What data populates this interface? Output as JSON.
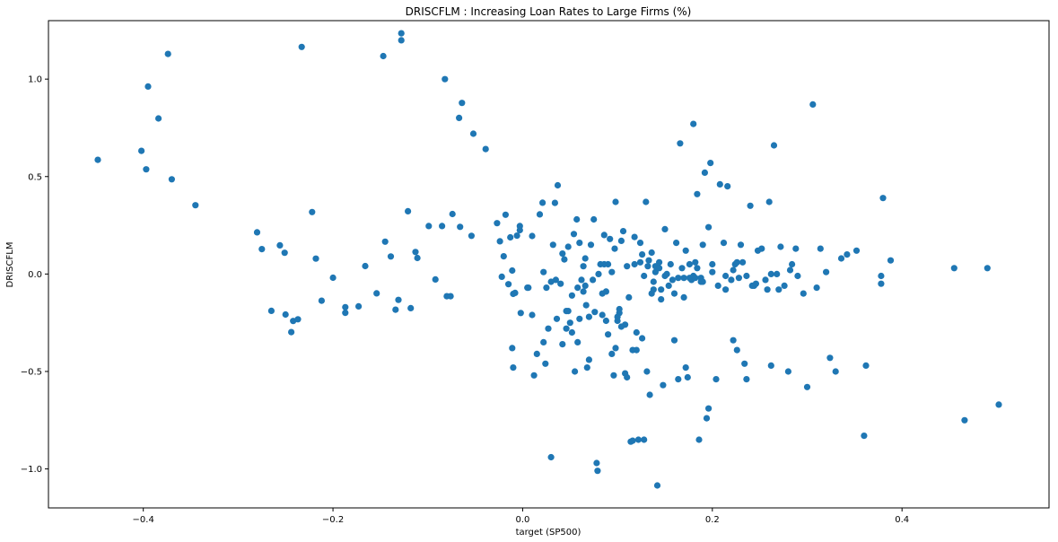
{
  "chart_data": {
    "type": "scatter",
    "title": "DRISCFLM :  Increasing Loan Rates to Large Firms (%)",
    "xlabel": "target (SP500)",
    "ylabel": "DRISCFLM",
    "xlim": [
      -0.5,
      0.555
    ],
    "ylim": [
      -1.2,
      1.3
    ],
    "xticks": [
      -0.4,
      -0.2,
      0.0,
      0.2,
      0.4
    ],
    "xtick_labels": [
      "−0.4",
      "−0.2",
      "0.0",
      "0.2",
      "0.4"
    ],
    "yticks": [
      -1.0,
      -0.5,
      0.0,
      0.5,
      1.0
    ],
    "ytick_labels": [
      "−1.0",
      "−0.5",
      "0.0",
      "0.5",
      "1.0"
    ],
    "grid": false,
    "marker_color": "#1f77b4",
    "points": [
      [
        -0.448,
        0.586
      ],
      [
        -0.402,
        0.632
      ],
      [
        -0.397,
        0.537
      ],
      [
        -0.395,
        0.962
      ],
      [
        -0.384,
        0.798
      ],
      [
        -0.374,
        1.129
      ],
      [
        -0.37,
        0.486
      ],
      [
        -0.345,
        0.353
      ],
      [
        -0.233,
        1.165
      ],
      [
        -0.147,
        1.118
      ],
      [
        -0.128,
        1.235
      ],
      [
        -0.128,
        1.199
      ],
      [
        -0.082,
        1.0
      ],
      [
        -0.067,
        0.801
      ],
      [
        -0.064,
        0.878
      ],
      [
        -0.052,
        0.72
      ],
      [
        -0.039,
        0.641
      ],
      [
        -0.28,
        0.214
      ],
      [
        -0.275,
        0.128
      ],
      [
        -0.256,
        0.147
      ],
      [
        -0.251,
        0.109
      ],
      [
        -0.222,
        0.318
      ],
      [
        -0.218,
        0.079
      ],
      [
        -0.212,
        -0.137
      ],
      [
        -0.2,
        -0.019
      ],
      [
        -0.187,
        -0.17
      ],
      [
        -0.187,
        -0.199
      ],
      [
        -0.173,
        -0.166
      ],
      [
        -0.166,
        0.041
      ],
      [
        -0.154,
        -0.099
      ],
      [
        -0.145,
        0.166
      ],
      [
        -0.139,
        0.09
      ],
      [
        -0.134,
        -0.183
      ],
      [
        -0.131,
        -0.133
      ],
      [
        -0.121,
        0.322
      ],
      [
        -0.118,
        -0.175
      ],
      [
        -0.113,
        0.113
      ],
      [
        -0.111,
        0.082
      ],
      [
        -0.099,
        0.246
      ],
      [
        -0.092,
        -0.028
      ],
      [
        -0.085,
        0.246
      ],
      [
        -0.08,
        -0.114
      ],
      [
        -0.076,
        -0.114
      ],
      [
        -0.074,
        0.308
      ],
      [
        -0.066,
        0.242
      ],
      [
        -0.054,
        0.196
      ],
      [
        -0.265,
        -0.189
      ],
      [
        -0.25,
        -0.208
      ],
      [
        -0.244,
        -0.298
      ],
      [
        -0.242,
        -0.241
      ],
      [
        -0.237,
        -0.232
      ],
      [
        -0.027,
        0.261
      ],
      [
        -0.024,
        0.168
      ],
      [
        -0.022,
        -0.014
      ],
      [
        -0.02,
        0.091
      ],
      [
        -0.018,
        0.304
      ],
      [
        -0.015,
        -0.052
      ],
      [
        -0.013,
        0.188
      ],
      [
        -0.011,
        0.018
      ],
      [
        -0.01,
        -0.102
      ],
      [
        -0.008,
        -0.097
      ],
      [
        -0.006,
        0.197
      ],
      [
        -0.003,
        0.225
      ],
      [
        -0.003,
        0.246
      ],
      [
        -0.002,
        -0.2
      ],
      [
        0.005,
        -0.07
      ],
      [
        0.01,
        0.195
      ],
      [
        0.015,
        -0.41
      ],
      [
        0.018,
        0.306
      ],
      [
        0.021,
        0.366
      ],
      [
        0.022,
        0.01
      ],
      [
        0.025,
        -0.07
      ],
      [
        0.027,
        -0.28
      ],
      [
        0.03,
        -0.94
      ],
      [
        0.032,
        0.15
      ],
      [
        0.034,
        0.365
      ],
      [
        0.035,
        -0.03
      ],
      [
        0.037,
        0.455
      ],
      [
        0.04,
        -0.05
      ],
      [
        0.042,
        0.105
      ],
      [
        0.044,
        0.075
      ],
      [
        0.046,
        -0.19
      ],
      [
        0.048,
        0.14
      ],
      [
        0.05,
        -0.25
      ],
      [
        0.052,
        -0.3
      ],
      [
        0.054,
        0.205
      ],
      [
        0.055,
        -0.5
      ],
      [
        0.057,
        0.28
      ],
      [
        0.058,
        -0.07
      ],
      [
        0.06,
        0.16
      ],
      [
        0.062,
        -0.03
      ],
      [
        0.064,
        0.04
      ],
      [
        0.066,
        0.08
      ],
      [
        0.067,
        -0.16
      ],
      [
        0.068,
        -0.48
      ],
      [
        0.07,
        -0.22
      ],
      [
        0.072,
        0.15
      ],
      [
        0.074,
        -0.03
      ],
      [
        0.075,
        0.28
      ],
      [
        0.076,
        -0.195
      ],
      [
        0.078,
        -0.97
      ],
      [
        0.079,
        -1.01
      ],
      [
        0.082,
        0.05
      ],
      [
        0.084,
        -0.1
      ],
      [
        0.086,
        0.2
      ],
      [
        0.088,
        -0.24
      ],
      [
        0.09,
        0.05
      ],
      [
        0.092,
        0.18
      ],
      [
        0.094,
        -0.41
      ],
      [
        0.096,
        -0.52
      ],
      [
        0.097,
        0.13
      ],
      [
        0.098,
        0.37
      ],
      [
        0.1,
        -0.22
      ],
      [
        0.102,
        -0.18
      ],
      [
        0.104,
        0.17
      ],
      [
        0.106,
        0.22
      ],
      [
        0.108,
        -0.26
      ],
      [
        0.11,
        -0.53
      ],
      [
        0.112,
        -0.12
      ],
      [
        0.114,
        -0.86
      ],
      [
        0.116,
        -0.855
      ],
      [
        0.118,
        0.05
      ],
      [
        0.12,
        -0.3
      ],
      [
        0.122,
        -0.85
      ],
      [
        0.124,
        0.06
      ],
      [
        0.126,
        0.1
      ],
      [
        0.128,
        -0.85
      ],
      [
        0.13,
        0.37
      ],
      [
        0.131,
        -0.5
      ],
      [
        0.133,
        0.07
      ],
      [
        0.134,
        -0.62
      ],
      [
        0.136,
        0.11
      ],
      [
        0.138,
        -0.04
      ],
      [
        0.14,
        0.01
      ],
      [
        0.142,
        -1.085
      ],
      [
        0.144,
        0.06
      ],
      [
        0.146,
        -0.08
      ],
      [
        0.148,
        -0.57
      ],
      [
        0.15,
        0.23
      ],
      [
        0.154,
        -0.06
      ],
      [
        0.158,
        -0.03
      ],
      [
        0.16,
        -0.34
      ],
      [
        0.162,
        0.16
      ],
      [
        0.164,
        -0.54
      ],
      [
        0.166,
        0.67
      ],
      [
        0.168,
        0.03
      ],
      [
        0.17,
        -0.02
      ],
      [
        0.172,
        -0.48
      ],
      [
        0.174,
        -0.53
      ],
      [
        0.176,
        0.05
      ],
      [
        0.178,
        -0.03
      ],
      [
        0.18,
        0.77
      ],
      [
        0.182,
        0.06
      ],
      [
        0.184,
        0.41
      ],
      [
        0.186,
        -0.85
      ],
      [
        0.188,
        -0.02
      ],
      [
        0.19,
        -0.04
      ],
      [
        0.192,
        0.52
      ],
      [
        0.194,
        -0.74
      ],
      [
        0.196,
        -0.69
      ],
      [
        0.198,
        0.57
      ],
      [
        0.2,
        0.01
      ],
      [
        0.204,
        -0.54
      ],
      [
        0.208,
        0.46
      ],
      [
        0.212,
        0.16
      ],
      [
        0.216,
        0.45
      ],
      [
        0.22,
        -0.03
      ],
      [
        0.222,
        -0.34
      ],
      [
        0.224,
        0.05
      ],
      [
        0.226,
        -0.39
      ],
      [
        0.23,
        0.15
      ],
      [
        0.234,
        -0.46
      ],
      [
        0.236,
        -0.01
      ],
      [
        0.24,
        0.35
      ],
      [
        0.244,
        -0.06
      ],
      [
        0.248,
        0.12
      ],
      [
        0.252,
        0.13
      ],
      [
        0.258,
        -0.08
      ],
      [
        0.26,
        0.37
      ],
      [
        0.262,
        -0.47
      ],
      [
        0.265,
        0.66
      ],
      [
        0.268,
        0.0
      ],
      [
        0.272,
        0.14
      ],
      [
        0.276,
        -0.06
      ],
      [
        0.28,
        -0.5
      ],
      [
        0.284,
        0.05
      ],
      [
        0.288,
        0.13
      ],
      [
        0.296,
        -0.1
      ],
      [
        0.3,
        -0.58
      ],
      [
        0.306,
        0.87
      ],
      [
        0.31,
        -0.07
      ],
      [
        0.314,
        0.13
      ],
      [
        0.32,
        0.01
      ],
      [
        0.324,
        -0.43
      ],
      [
        0.33,
        -0.5
      ],
      [
        0.336,
        0.08
      ],
      [
        0.342,
        0.1
      ],
      [
        0.352,
        0.12
      ],
      [
        0.36,
        -0.83
      ],
      [
        0.362,
        -0.47
      ],
      [
        0.378,
        -0.05
      ],
      [
        0.378,
        -0.01
      ],
      [
        0.38,
        0.39
      ],
      [
        0.388,
        0.07
      ],
      [
        0.455,
        0.03
      ],
      [
        0.466,
        -0.75
      ],
      [
        0.49,
        0.03
      ],
      [
        0.502,
        -0.67
      ],
      [
        0.03,
        -0.04
      ],
      [
        0.042,
        -0.36
      ],
      [
        0.046,
        -0.28
      ],
      [
        0.036,
        -0.23
      ],
      [
        0.058,
        -0.35
      ],
      [
        0.066,
        -0.06
      ],
      [
        0.07,
        -0.44
      ],
      [
        0.08,
        0.0
      ],
      [
        0.086,
        0.05
      ],
      [
        0.09,
        -0.31
      ],
      [
        0.094,
        0.01
      ],
      [
        0.1,
        -0.24
      ],
      [
        0.104,
        -0.27
      ],
      [
        0.11,
        0.04
      ],
      [
        0.118,
        0.19
      ],
      [
        0.12,
        -0.39
      ],
      [
        0.124,
        0.16
      ],
      [
        0.128,
        -0.01
      ],
      [
        0.132,
        0.04
      ],
      [
        0.136,
        -0.1
      ],
      [
        0.14,
        0.04
      ],
      [
        0.144,
        0.03
      ],
      [
        0.146,
        -0.13
      ],
      [
        0.152,
        0.0
      ],
      [
        0.156,
        0.05
      ],
      [
        0.164,
        -0.02
      ],
      [
        0.172,
        0.12
      ],
      [
        0.176,
        -0.02
      ],
      [
        0.18,
        -0.01
      ],
      [
        0.184,
        0.03
      ],
      [
        0.19,
        0.15
      ],
      [
        0.196,
        0.24
      ],
      [
        0.2,
        0.05
      ],
      [
        0.214,
        -0.01
      ],
      [
        0.222,
        0.02
      ],
      [
        0.226,
        0.06
      ],
      [
        0.232,
        0.06
      ],
      [
        0.236,
        -0.54
      ],
      [
        0.246,
        -0.05
      ],
      [
        0.262,
        0.0
      ],
      [
        0.282,
        0.02
      ],
      [
        0.012,
        -0.52
      ],
      [
        -0.01,
        -0.48
      ],
      [
        -0.011,
        -0.38
      ],
      [
        0.024,
        -0.46
      ],
      [
        0.022,
        -0.35
      ],
      [
        0.01,
        -0.21
      ],
      [
        0.006,
        -0.07
      ],
      [
        0.048,
        -0.19
      ],
      [
        0.052,
        -0.11
      ],
      [
        0.06,
        -0.23
      ],
      [
        0.064,
        -0.09
      ],
      [
        0.084,
        -0.21
      ],
      [
        0.088,
        -0.09
      ],
      [
        0.098,
        -0.38
      ],
      [
        0.102,
        -0.2
      ],
      [
        0.108,
        -0.51
      ],
      [
        0.116,
        -0.39
      ],
      [
        0.126,
        -0.33
      ],
      [
        0.138,
        -0.08
      ],
      [
        0.15,
        -0.01
      ],
      [
        0.16,
        -0.1
      ],
      [
        0.17,
        -0.12
      ],
      [
        0.182,
        -0.02
      ],
      [
        0.188,
        -0.04
      ],
      [
        0.206,
        -0.06
      ],
      [
        0.214,
        -0.08
      ],
      [
        0.228,
        -0.02
      ],
      [
        0.242,
        -0.06
      ],
      [
        0.256,
        -0.03
      ],
      [
        0.27,
        -0.08
      ],
      [
        0.29,
        -0.01
      ]
    ]
  }
}
